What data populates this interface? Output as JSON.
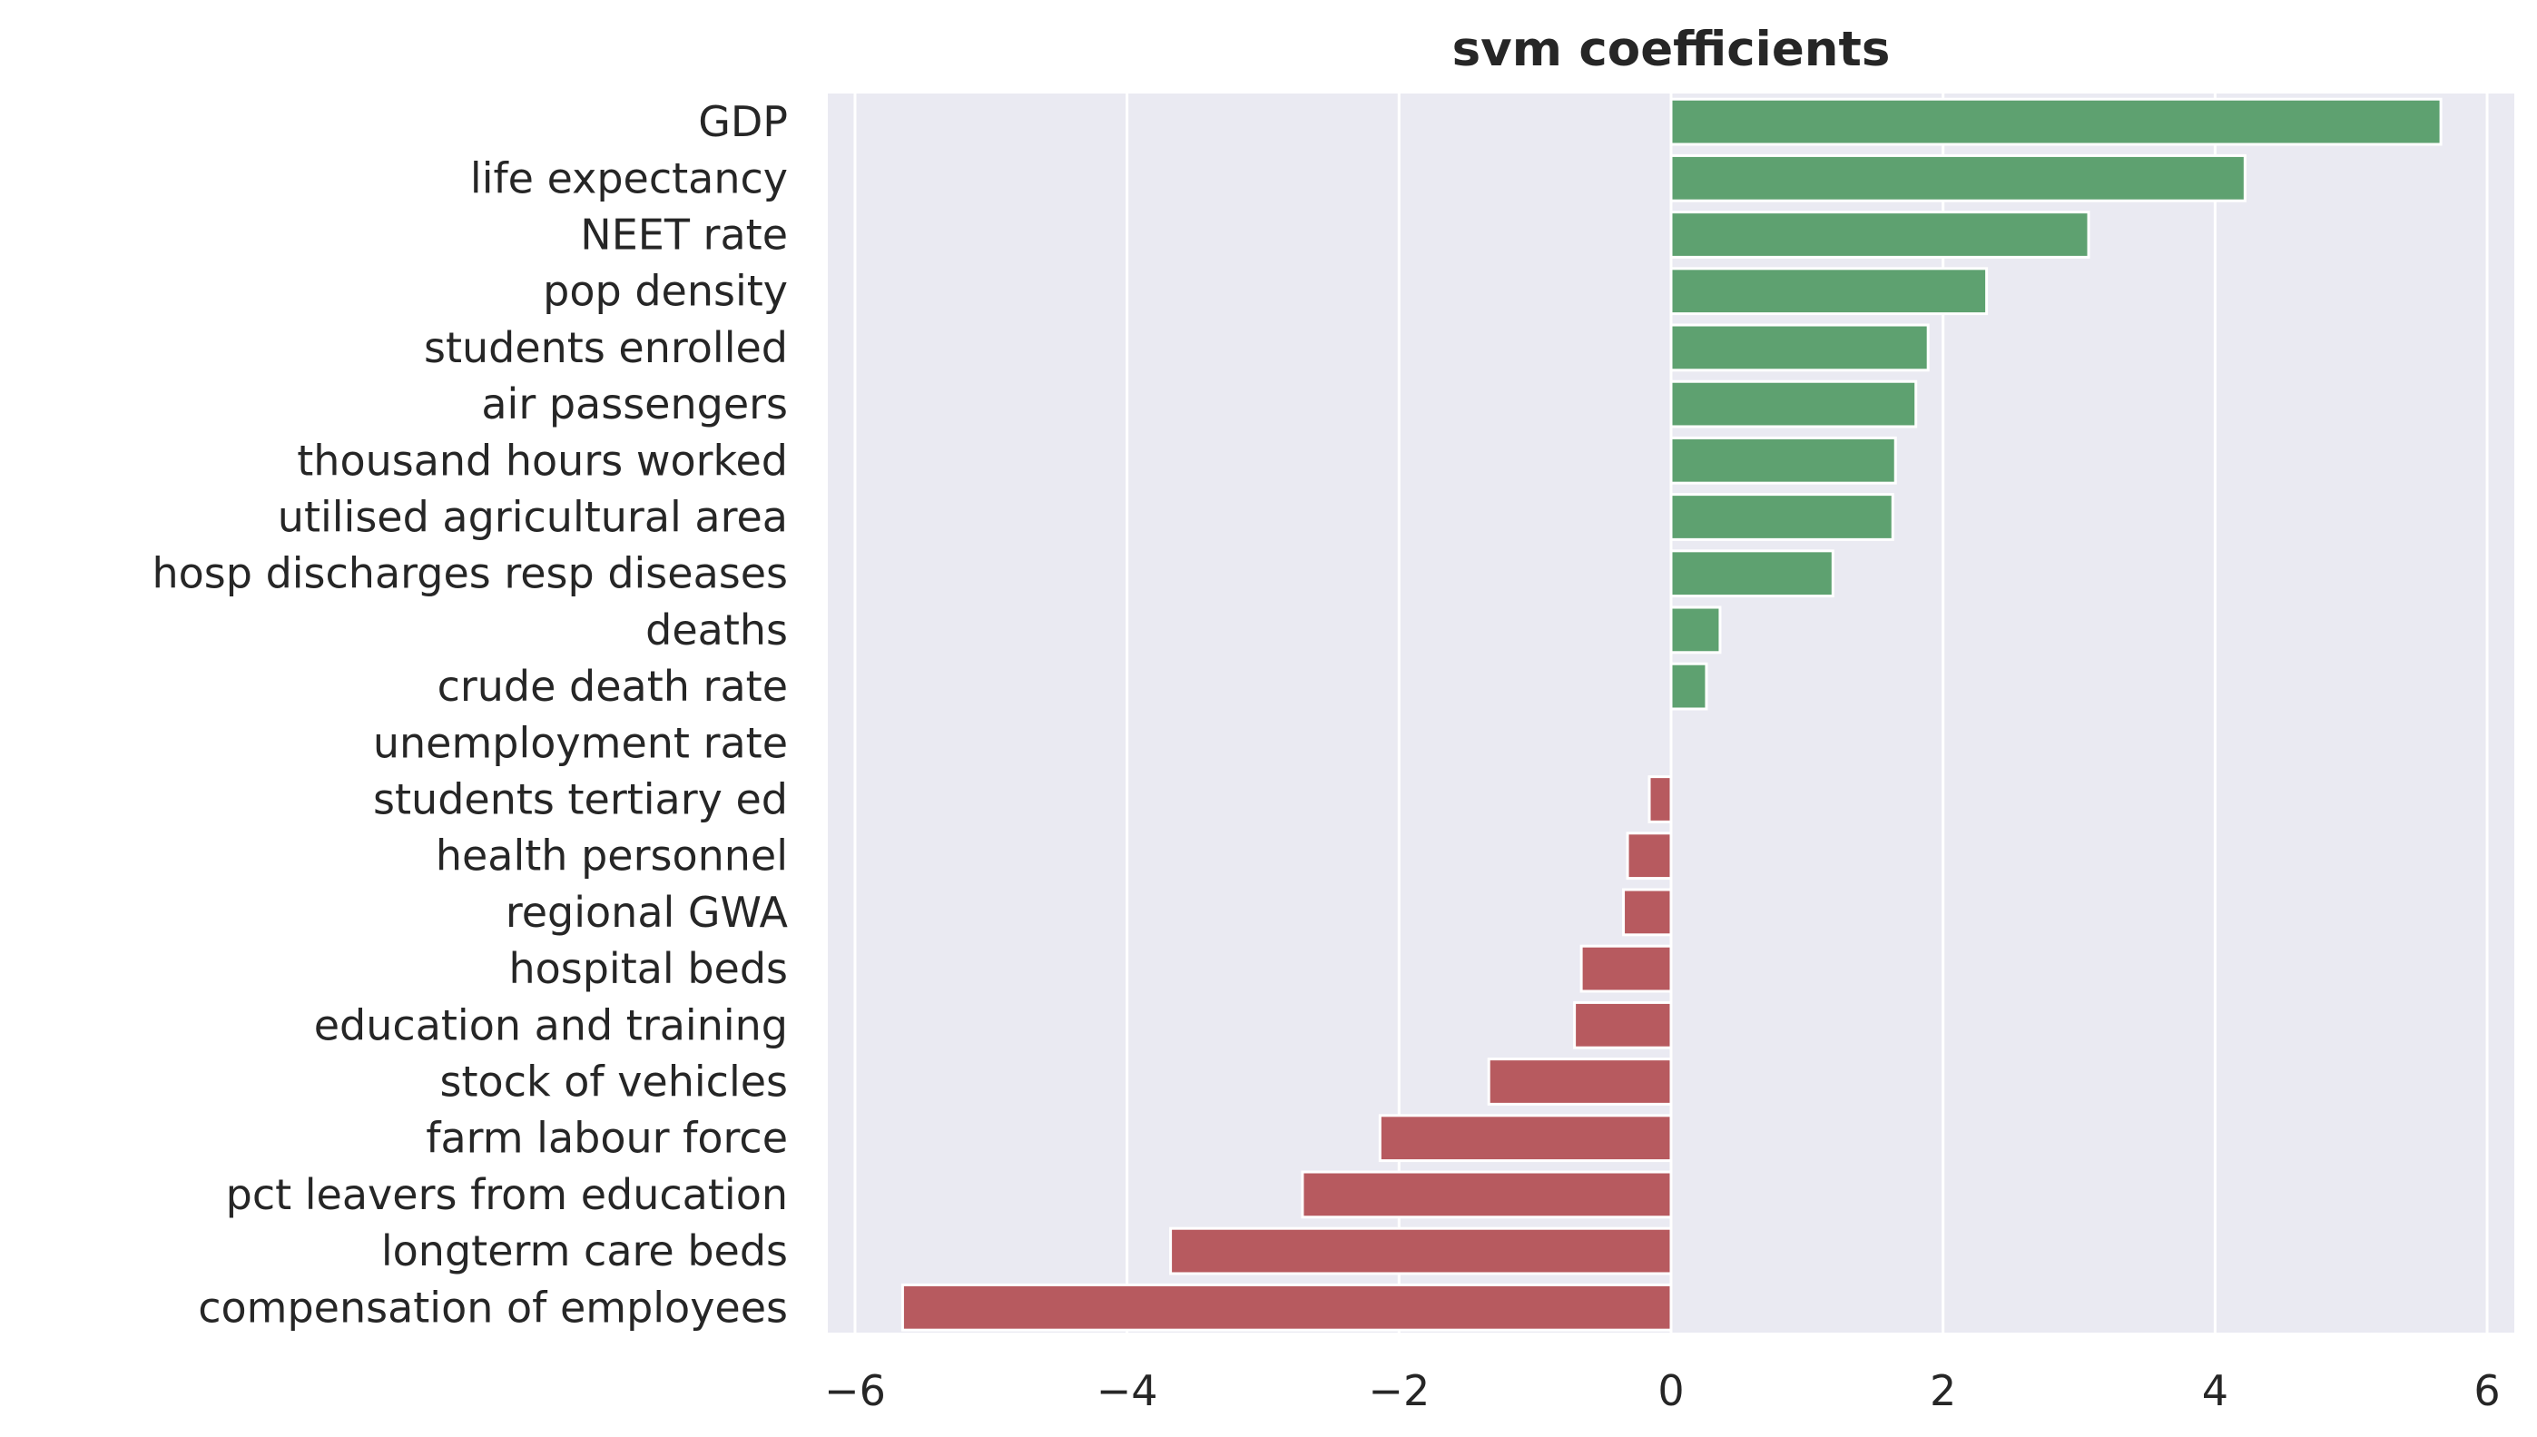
{
  "chart_data": {
    "type": "bar",
    "orientation": "horizontal",
    "title": "svm coefficients",
    "xlabel": "",
    "ylabel": "",
    "xlim": [
      -6.2,
      6.2
    ],
    "xticks": [
      -6,
      -4,
      -2,
      0,
      2,
      4,
      6
    ],
    "xtick_labels": [
      "−6",
      "−4",
      "−2",
      "0",
      "2",
      "4",
      "6"
    ],
    "grid": true,
    "legend": "none",
    "colors": {
      "positive": "#5ea170",
      "negative": "#b75a5f",
      "background": "#eaeaf2",
      "grid": "#ffffff",
      "text": "#262626"
    },
    "categories": [
      "GDP",
      "life expectancy",
      "NEET rate",
      "pop density",
      "students enrolled",
      "air passengers",
      "thousand hours worked",
      "utilised agricultural area",
      "hosp discharges resp diseases",
      "deaths",
      "crude death rate",
      "unemployment rate",
      "students tertiary ed",
      "health personnel",
      "regional GWA",
      "hospital beds",
      "education and training",
      "stock of vehicles",
      "farm labour force",
      "pct leavers from education",
      "longterm care beds",
      "compensation of employees"
    ],
    "values": [
      5.66,
      4.22,
      3.07,
      2.32,
      1.89,
      1.8,
      1.65,
      1.63,
      1.19,
      0.36,
      0.26,
      0.0,
      -0.16,
      -0.32,
      -0.35,
      -0.66,
      -0.71,
      -1.34,
      -2.14,
      -2.71,
      -3.68,
      -5.65
    ]
  }
}
